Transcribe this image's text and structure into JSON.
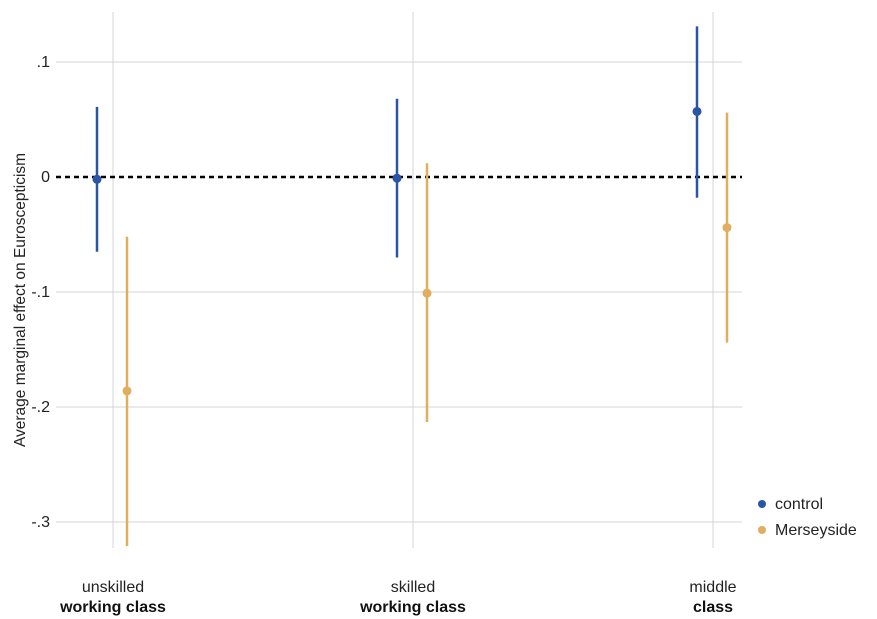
{
  "chart_data": {
    "type": "scatter",
    "subtype": "point estimates with confidence intervals",
    "title": "",
    "xlabel": "",
    "ylabel": "Average marginal effect on Euroscepticism",
    "ylim": [
      -0.34,
      0.145
    ],
    "y_ticks": [
      {
        "value": 0.1,
        "label": ".1"
      },
      {
        "value": 0,
        "label": "0"
      },
      {
        "value": -0.1,
        "label": "-.1"
      },
      {
        "value": -0.2,
        "label": "-.2"
      },
      {
        "value": -0.3,
        "label": "-.3"
      }
    ],
    "grid": true,
    "reference_line": {
      "y": 0,
      "style": "dashed"
    },
    "categories": [
      {
        "line1": "unskilled",
        "line2": "working class"
      },
      {
        "line1": "skilled",
        "line2": "working class"
      },
      {
        "line1": "middle",
        "line2": "class"
      }
    ],
    "series": [
      {
        "name": "control",
        "color": "#2a55a6",
        "points": [
          {
            "estimate": -0.002,
            "lower": -0.065,
            "upper": 0.061
          },
          {
            "estimate": -0.001,
            "lower": -0.07,
            "upper": 0.068
          },
          {
            "estimate": 0.057,
            "lower": -0.018,
            "upper": 0.131
          }
        ]
      },
      {
        "name": "Merseyside",
        "color": "#e0ae5c",
        "points": [
          {
            "estimate": -0.186,
            "lower": -0.321,
            "upper": -0.052
          },
          {
            "estimate": -0.101,
            "lower": -0.213,
            "upper": 0.012
          },
          {
            "estimate": -0.044,
            "lower": -0.144,
            "upper": 0.056
          }
        ]
      }
    ],
    "legend": {
      "position": "right-bottom"
    }
  }
}
